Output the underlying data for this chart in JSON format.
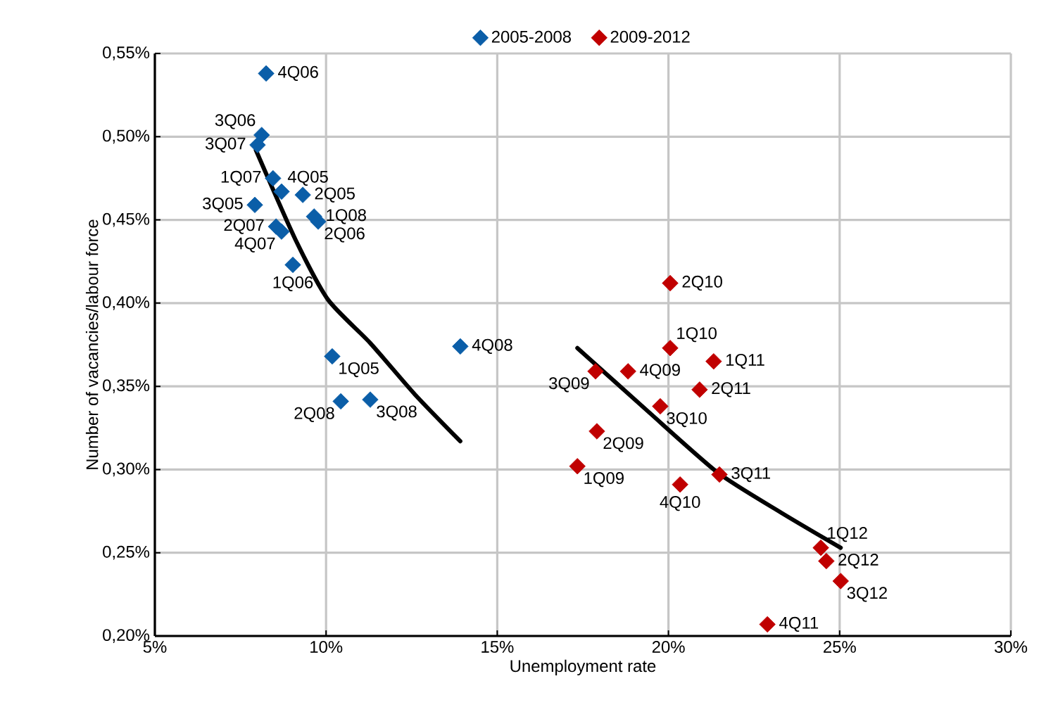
{
  "chart_data": {
    "type": "scatter",
    "xlabel": "Unemployment rate",
    "ylabel": "Number of vacancies/labour force",
    "xlim": [
      5,
      30
    ],
    "ylim": [
      0.2,
      0.55
    ],
    "xticks": [
      {
        "value": 5,
        "label": "5%"
      },
      {
        "value": 10,
        "label": "10%"
      },
      {
        "value": 15,
        "label": "15%"
      },
      {
        "value": 20,
        "label": "20%"
      },
      {
        "value": 25,
        "label": "25%"
      },
      {
        "value": 30,
        "label": "30%"
      }
    ],
    "yticks": [
      {
        "value": 0.2,
        "label": "0,20%"
      },
      {
        "value": 0.25,
        "label": "0,25%"
      },
      {
        "value": 0.3,
        "label": "0,30%"
      },
      {
        "value": 0.35,
        "label": "0,35%"
      },
      {
        "value": 0.4,
        "label": "0,40%"
      },
      {
        "value": 0.45,
        "label": "0,45%"
      },
      {
        "value": 0.5,
        "label": "0,50%"
      },
      {
        "value": 0.55,
        "label": "0,55%"
      }
    ],
    "grid": true,
    "legend": "top",
    "marker": "diamond",
    "series": [
      {
        "name": "2005-2008",
        "color": "#0b5ea8",
        "x": [
          8.25,
          8.12,
          8.0,
          8.45,
          8.7,
          7.92,
          9.32,
          8.54,
          9.65,
          8.7,
          9.77,
          9.03,
          10.18,
          13.92,
          10.43,
          11.29
        ],
        "values": [
          0.538,
          0.501,
          0.495,
          0.475,
          0.467,
          0.459,
          0.465,
          0.446,
          0.452,
          0.443,
          0.449,
          0.423,
          0.368,
          0.374,
          0.341,
          0.342
        ]
      },
      {
        "name": "2009-2012",
        "color": "#c00000",
        "x": [
          20.05,
          20.05,
          21.32,
          17.87,
          18.82,
          20.91,
          19.76,
          17.91,
          17.34,
          20.34,
          21.49,
          24.45,
          24.61,
          25.03,
          22.89
        ],
        "values": [
          0.412,
          0.373,
          0.365,
          0.359,
          0.359,
          0.348,
          0.338,
          0.323,
          0.302,
          0.291,
          0.297,
          0.253,
          0.245,
          0.233,
          0.207
        ]
      },
      {
        "type": "line",
        "marker": "none",
        "color": "#000000",
        "x": [
          7.95,
          9.11,
          10.06,
          11.29,
          12.6,
          13.92
        ],
        "values": [
          0.492,
          0.438,
          0.402,
          0.376,
          0.345,
          0.317
        ]
      },
      {
        "type": "line",
        "marker": "none",
        "color": "#000000",
        "x": [
          17.34,
          19.4,
          21.45,
          23.3,
          25.03
        ],
        "values": [
          0.373,
          0.335,
          0.298,
          0.274,
          0.253
        ]
      }
    ],
    "annotations": [
      {
        "text": "4Q06",
        "x": 8.25,
        "y": 0.538
      },
      {
        "text": "3Q06",
        "x": 8.12,
        "y": 0.501
      },
      {
        "text": "3Q07",
        "x": 8.0,
        "y": 0.495
      },
      {
        "text": "1Q07",
        "x": 8.45,
        "y": 0.475
      },
      {
        "text": "4Q05",
        "x": 8.7,
        "y": 0.467
      },
      {
        "text": "3Q05",
        "x": 7.92,
        "y": 0.459
      },
      {
        "text": "2Q05",
        "x": 9.32,
        "y": 0.465
      },
      {
        "text": "2Q07",
        "x": 8.54,
        "y": 0.446
      },
      {
        "text": "1Q08",
        "x": 9.65,
        "y": 0.452
      },
      {
        "text": "4Q07",
        "x": 8.7,
        "y": 0.443
      },
      {
        "text": "2Q06",
        "x": 9.77,
        "y": 0.449
      },
      {
        "text": "1Q06",
        "x": 9.03,
        "y": 0.423
      },
      {
        "text": "1Q05",
        "x": 10.18,
        "y": 0.368
      },
      {
        "text": "4Q08",
        "x": 13.92,
        "y": 0.374
      },
      {
        "text": "2Q08",
        "x": 10.43,
        "y": 0.341
      },
      {
        "text": "3Q08",
        "x": 11.29,
        "y": 0.342
      },
      {
        "text": "2Q10",
        "x": 20.05,
        "y": 0.412
      },
      {
        "text": "1Q10",
        "x": 20.05,
        "y": 0.373
      },
      {
        "text": "1Q11",
        "x": 21.32,
        "y": 0.365
      },
      {
        "text": "3Q09",
        "x": 17.87,
        "y": 0.359
      },
      {
        "text": "4Q09",
        "x": 18.82,
        "y": 0.359
      },
      {
        "text": "2Q11",
        "x": 20.91,
        "y": 0.348
      },
      {
        "text": "3Q10",
        "x": 19.76,
        "y": 0.338
      },
      {
        "text": "2Q09",
        "x": 17.91,
        "y": 0.323
      },
      {
        "text": "1Q09",
        "x": 17.34,
        "y": 0.302
      },
      {
        "text": "4Q10",
        "x": 20.34,
        "y": 0.291
      },
      {
        "text": "3Q11",
        "x": 21.49,
        "y": 0.297
      },
      {
        "text": "1Q12",
        "x": 24.45,
        "y": 0.253
      },
      {
        "text": "2Q12",
        "x": 24.61,
        "y": 0.245
      },
      {
        "text": "3Q12",
        "x": 25.03,
        "y": 0.233
      },
      {
        "text": "4Q11",
        "x": 22.89,
        "y": 0.207
      }
    ]
  }
}
